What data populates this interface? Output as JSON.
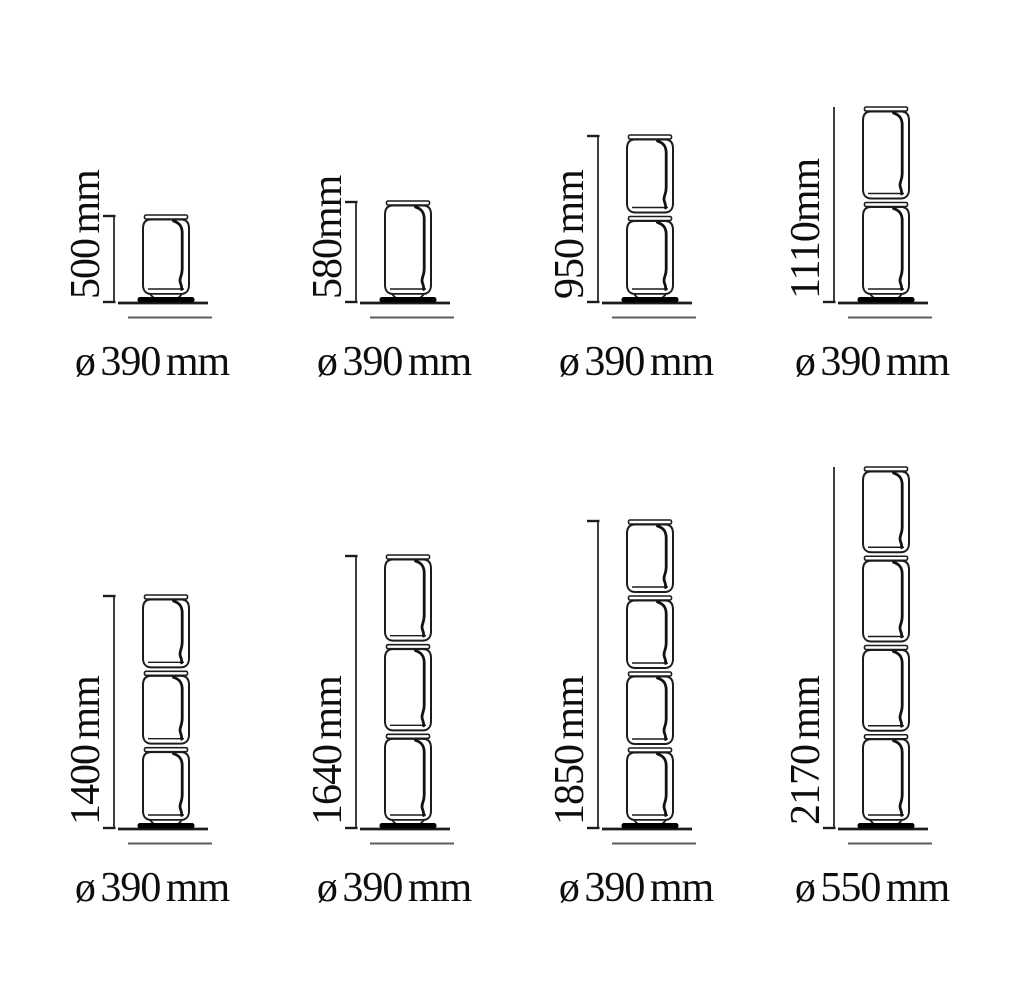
{
  "diagram": {
    "kind": "lamp-size-dimension-diagram",
    "unit": "mm",
    "colors": {
      "line": "#1c1c1c",
      "text": "#0e0e0e",
      "shadow_line": "#5c5c5c",
      "base_fill": "#000000",
      "background": "#ffffff"
    }
  },
  "lamps": [
    {
      "segments": 1,
      "height_mm": 500,
      "height_label": "500 mm",
      "diameter_mm": 390,
      "diameter_label": "ø 390 mm"
    },
    {
      "segments": 1,
      "height_mm": 580,
      "height_label": "580mm",
      "diameter_mm": 390,
      "diameter_label": "ø 390 mm"
    },
    {
      "segments": 2,
      "height_mm": 950,
      "height_label": "950 mm",
      "diameter_mm": 390,
      "diameter_label": "ø 390 mm"
    },
    {
      "segments": 2,
      "height_mm": 1110,
      "height_label": "1110mm",
      "diameter_mm": 390,
      "diameter_label": "ø 390 mm"
    },
    {
      "segments": 3,
      "height_mm": 1400,
      "height_label": "1400 mm",
      "diameter_mm": 390,
      "diameter_label": "ø 390 mm"
    },
    {
      "segments": 3,
      "height_mm": 1640,
      "height_label": "1640 mm",
      "diameter_mm": 390,
      "diameter_label": "ø 390 mm"
    },
    {
      "segments": 4,
      "height_mm": 1850,
      "height_label": "1850 mm",
      "diameter_mm": 390,
      "diameter_label": "ø 390 mm"
    },
    {
      "segments": 4,
      "height_mm": 2170,
      "height_label": "2170 mm",
      "diameter_mm": 550,
      "diameter_label": "ø 550 mm"
    }
  ]
}
